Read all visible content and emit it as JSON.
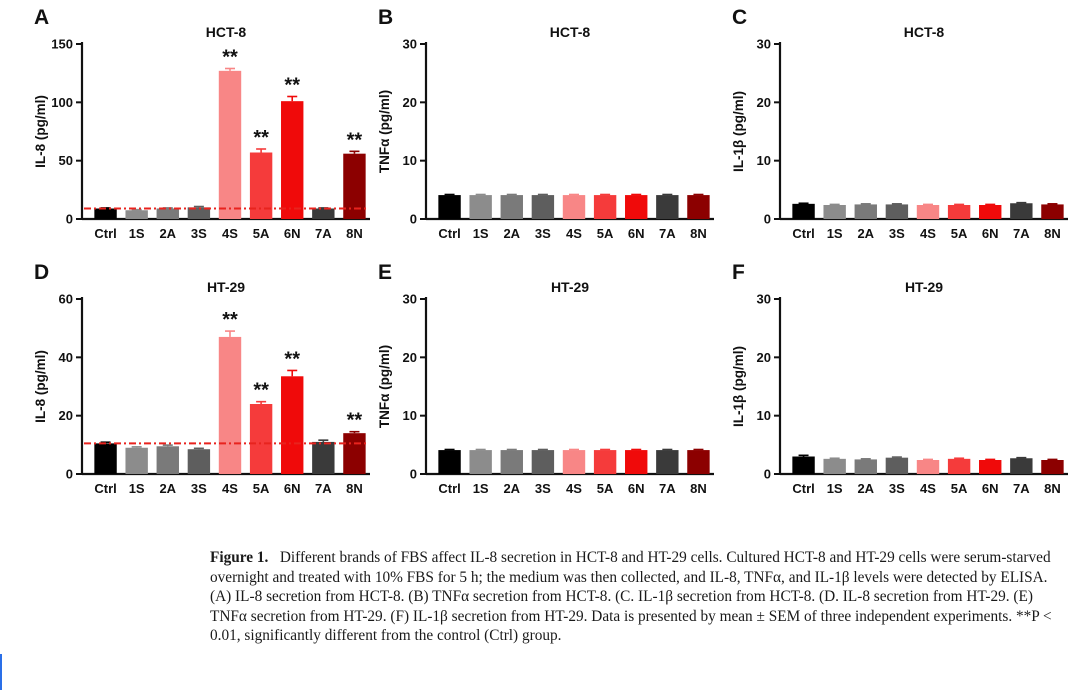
{
  "chart_data": [
    {
      "panel": "A",
      "type": "bar",
      "title": "HCT-8",
      "ylabel": "IL-8 (pg/ml)",
      "categories": [
        "Ctrl",
        "1S",
        "2A",
        "3S",
        "4S",
        "5A",
        "6N",
        "7A",
        "8N"
      ],
      "values": [
        9,
        7.5,
        9,
        10,
        127,
        57,
        101,
        9,
        56
      ],
      "errors": [
        0.5,
        0.5,
        0.5,
        0.7,
        2,
        3,
        4,
        0.5,
        2
      ],
      "ylim": [
        0,
        150
      ],
      "yticks": [
        "0",
        "50",
        "100",
        "150"
      ],
      "baseline": 9,
      "annotations": [
        "",
        "",
        "",
        "",
        "**",
        "**",
        "**",
        "",
        "**"
      ]
    },
    {
      "panel": "B",
      "type": "bar",
      "title": "HCT-8",
      "ylabel": "TNFα (pg/ml)",
      "categories": [
        "Ctrl",
        "1S",
        "2A",
        "3S",
        "4S",
        "5A",
        "6N",
        "7A",
        "8N"
      ],
      "values": [
        4.1,
        4.1,
        4.1,
        4.1,
        4.1,
        4.1,
        4.1,
        4.1,
        4.1
      ],
      "errors": [
        0.1,
        0.1,
        0.1,
        0.1,
        0.1,
        0.1,
        0.1,
        0.1,
        0.1
      ],
      "ylim": [
        0,
        30
      ],
      "yticks": [
        "0",
        "10",
        "20",
        "30"
      ],
      "baseline": null,
      "annotations": [
        "",
        "",
        "",
        "",
        "",
        "",
        "",
        "",
        ""
      ]
    },
    {
      "panel": "C",
      "type": "bar",
      "title": "HCT-8",
      "ylabel": "IL-1β (pg/ml)",
      "categories": [
        "Ctrl",
        "1S",
        "2A",
        "3S",
        "4S",
        "5A",
        "6N",
        "7A",
        "8N"
      ],
      "values": [
        2.6,
        2.4,
        2.5,
        2.5,
        2.4,
        2.4,
        2.4,
        2.7,
        2.5
      ],
      "errors": [
        0.1,
        0.1,
        0.1,
        0.1,
        0.1,
        0.1,
        0.1,
        0.1,
        0.1
      ],
      "ylim": [
        0,
        30
      ],
      "yticks": [
        "0",
        "10",
        "20",
        "30"
      ],
      "baseline": null,
      "annotations": [
        "",
        "",
        "",
        "",
        "",
        "",
        "",
        "",
        ""
      ]
    },
    {
      "panel": "D",
      "type": "bar",
      "title": "HT-29",
      "ylabel": "IL-8 (pg/ml)",
      "categories": [
        "Ctrl",
        "1S",
        "2A",
        "3S",
        "4S",
        "5A",
        "6N",
        "7A",
        "8N"
      ],
      "values": [
        10.5,
        9,
        9.5,
        8.5,
        47,
        24,
        33.5,
        11,
        14
      ],
      "errors": [
        0.4,
        0.3,
        0.4,
        0.3,
        2,
        0.8,
        2,
        0.6,
        0.5
      ],
      "ylim": [
        0,
        60
      ],
      "yticks": [
        "0",
        "20",
        "40",
        "60"
      ],
      "baseline": 10.5,
      "annotations": [
        "",
        "",
        "",
        "",
        "**",
        "**",
        "**",
        "",
        "**"
      ]
    },
    {
      "panel": "E",
      "type": "bar",
      "title": "HT-29",
      "ylabel": "TNFα (pg/ml)",
      "categories": [
        "Ctrl",
        "1S",
        "2A",
        "3S",
        "4S",
        "5A",
        "6N",
        "7A",
        "8N"
      ],
      "values": [
        4.1,
        4.1,
        4.1,
        4.1,
        4.1,
        4.1,
        4.1,
        4.1,
        4.1
      ],
      "errors": [
        0.1,
        0.1,
        0.1,
        0.1,
        0.1,
        0.1,
        0.1,
        0.1,
        0.1
      ],
      "ylim": [
        0,
        30
      ],
      "yticks": [
        "0",
        "10",
        "20",
        "30"
      ],
      "baseline": null,
      "annotations": [
        "",
        "",
        "",
        "",
        "",
        "",
        "",
        "",
        ""
      ]
    },
    {
      "panel": "F",
      "type": "bar",
      "title": "HT-29",
      "ylabel": "IL-1β (pg/ml)",
      "categories": [
        "Ctrl",
        "1S",
        "2A",
        "3S",
        "4S",
        "5A",
        "6N",
        "7A",
        "8N"
      ],
      "values": [
        3.0,
        2.6,
        2.5,
        2.8,
        2.4,
        2.6,
        2.4,
        2.7,
        2.4
      ],
      "errors": [
        0.2,
        0.1,
        0.1,
        0.1,
        0.1,
        0.1,
        0.1,
        0.1,
        0.1
      ],
      "ylim": [
        0,
        30
      ],
      "yticks": [
        "0",
        "10",
        "20",
        "30"
      ],
      "baseline": null,
      "annotations": [
        "",
        "",
        "",
        "",
        "",
        "",
        "",
        "",
        ""
      ]
    }
  ],
  "colors": {
    "bars": [
      "#000000",
      "#8c8c8c",
      "#7a7a7a",
      "#5e5e5e",
      "#f88686",
      "#f53b3b",
      "#f00a0a",
      "#3a3a3a",
      "#8c0000"
    ],
    "baseline": "#e8231e"
  },
  "caption": {
    "label": "Figure 1.",
    "text": "Different brands of FBS affect IL-8 secretion in HCT-8 and HT-29 cells. Cultured HCT-8 and HT-29 cells were serum-starved overnight and treated with 10% FBS for 5 h; the medium was then collected, and IL-8, TNFα, and IL-1β levels were detected by ELISA. (A) IL-8 secretion from HCT-8. (B) TNFα secretion from HCT-8. (C. IL-1β secretion from HCT-8. (D. IL-8 secretion from HT-29. (E) TNFα secretion from HT-29. (F) IL-1β secretion from HT-29. Data is presented by mean ± SEM of three independent experiments. **P < 0.01, significantly different from the control (Ctrl) group."
  }
}
